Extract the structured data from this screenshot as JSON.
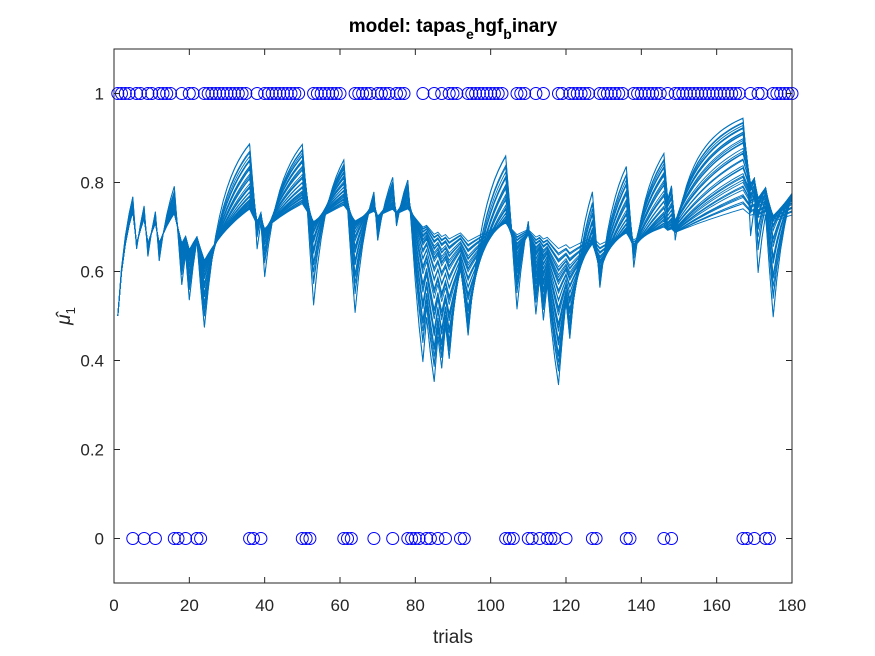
{
  "chart_data": {
    "type": "line",
    "title": {
      "prefix": "model: tapas",
      "sub1": "e",
      "mid": "hgf",
      "sub2": "b",
      "suffix": "inary"
    },
    "xlabel": "trials",
    "ylabel": {
      "base": "μ̂",
      "sub": "1"
    },
    "xlim": [
      0,
      180
    ],
    "ylim": [
      -0.1,
      1.1
    ],
    "xticks": [
      0,
      20,
      40,
      60,
      80,
      100,
      120,
      140,
      160,
      180
    ],
    "yticks": [
      0,
      0.2,
      0.4,
      0.6,
      0.8,
      1
    ],
    "ytick_labels": [
      "0",
      "0.2",
      "0.4",
      "0.6",
      "0.8",
      "1"
    ],
    "grid": false,
    "line_color": "#0072BD",
    "marker_color": "#0000FF",
    "n_trajectories": 40,
    "inputs": [
      1,
      1,
      1,
      1,
      0,
      1,
      1,
      0,
      1,
      1,
      0,
      1,
      1,
      1,
      1,
      0,
      0,
      1,
      0,
      1,
      1,
      0,
      0,
      1,
      1,
      1,
      1,
      1,
      1,
      1,
      1,
      1,
      1,
      1,
      1,
      0,
      0,
      1,
      0,
      1,
      1,
      1,
      1,
      1,
      1,
      1,
      1,
      1,
      1,
      0,
      0,
      0,
      1,
      1,
      1,
      1,
      1,
      1,
      1,
      1,
      0,
      0,
      0,
      1,
      1,
      1,
      1,
      1,
      0,
      1,
      1,
      1,
      1,
      0,
      1,
      1,
      1,
      0,
      0,
      0,
      0,
      1,
      0,
      0,
      1,
      0,
      1,
      0,
      1,
      1,
      1,
      0,
      0,
      1,
      1,
      1,
      1,
      1,
      1,
      1,
      1,
      1,
      1,
      0,
      0,
      0,
      1,
      1,
      1,
      0,
      0,
      1,
      0,
      1,
      0,
      0,
      0,
      1,
      1,
      0,
      1,
      1,
      1,
      1,
      1,
      1,
      0,
      0,
      1,
      1,
      1,
      1,
      1,
      1,
      1,
      0,
      0,
      1,
      1,
      1,
      1,
      1,
      1,
      1,
      1,
      0,
      1,
      0,
      1,
      1,
      1,
      1,
      1,
      1,
      1,
      1,
      1,
      1,
      1,
      1,
      1,
      1,
      1,
      1,
      1,
      1,
      0,
      0,
      1,
      0,
      1,
      1,
      0,
      0,
      1,
      1,
      1,
      1,
      1,
      1
    ]
  }
}
